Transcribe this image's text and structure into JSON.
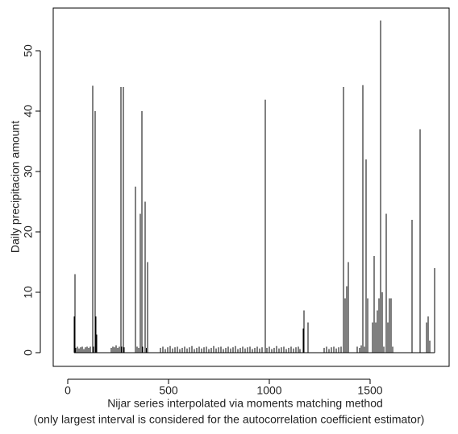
{
  "chart_data": {
    "type": "spike",
    "ylabel": "Daily precipitacion amount",
    "xlabel": [
      "Nijar series interpolated via moments matching method",
      "(only largest interval is considered for the autocorrelation coefficient estimator)"
    ],
    "xlim": [
      -72,
      1892
    ],
    "ylim": [
      -2.27,
      57.07
    ],
    "xticks": [
      0,
      500,
      1000,
      1500
    ],
    "yticks": [
      0,
      10,
      20,
      30,
      40,
      50
    ],
    "color": "#000000",
    "x": [
      32,
      36,
      40,
      48,
      56,
      64,
      72,
      80,
      88,
      96,
      104,
      112,
      124,
      128,
      136,
      140,
      144,
      216,
      224,
      232,
      240,
      248,
      256,
      264,
      268,
      276,
      280,
      336,
      344,
      352,
      360,
      368,
      372,
      384,
      390,
      396,
      460,
      472,
      484,
      496,
      508,
      520,
      532,
      544,
      556,
      568,
      580,
      592,
      604,
      616,
      628,
      640,
      652,
      664,
      676,
      688,
      700,
      712,
      724,
      736,
      748,
      760,
      772,
      784,
      796,
      808,
      820,
      832,
      844,
      856,
      868,
      880,
      892,
      904,
      916,
      928,
      940,
      952,
      964,
      980,
      988,
      1000,
      1012,
      1024,
      1036,
      1048,
      1060,
      1072,
      1084,
      1096,
      1108,
      1120,
      1132,
      1144,
      1152,
      1168,
      1172,
      1192,
      1272,
      1284,
      1296,
      1308,
      1320,
      1332,
      1344,
      1356,
      1368,
      1376,
      1384,
      1392,
      1436,
      1448,
      1456,
      1464,
      1472,
      1480,
      1488,
      1512,
      1520,
      1528,
      1536,
      1544,
      1552,
      1560,
      1568,
      1580,
      1588,
      1596,
      1604,
      1612,
      1708,
      1748,
      1780,
      1788,
      1796,
      1820
    ],
    "values": [
      6,
      13,
      0.8,
      1,
      0.7,
      0.9,
      1,
      0.6,
      0.9,
      1,
      0.8,
      1,
      44.2,
      1,
      40,
      6,
      3,
      0.8,
      1,
      0.9,
      1.2,
      0.8,
      1,
      44,
      1,
      44,
      0.9,
      27.5,
      1,
      0.8,
      23,
      40,
      1,
      25,
      0.8,
      15,
      0.8,
      1,
      0.6,
      0.9,
      1.1,
      0.7,
      0.9,
      1,
      0.6,
      0.8,
      1,
      0.7,
      0.9,
      1.1,
      0.6,
      0.8,
      1,
      0.7,
      0.9,
      1,
      0.6,
      0.8,
      1.1,
      0.7,
      0.9,
      1,
      0.6,
      0.8,
      1,
      0.7,
      0.9,
      1.1,
      0.6,
      0.8,
      1,
      0.7,
      0.9,
      1,
      0.6,
      0.8,
      1,
      0.7,
      0.9,
      41.9,
      0.8,
      1,
      0.6,
      0.8,
      1.1,
      0.7,
      0.9,
      1,
      0.6,
      0.8,
      1,
      0.7,
      0.9,
      1,
      0.6,
      4,
      7,
      5,
      0.8,
      1,
      0.6,
      0.9,
      1,
      0.7,
      0.9,
      1,
      44,
      9,
      11,
      15,
      1,
      0.8,
      1.2,
      44.3,
      1,
      32,
      9,
      5,
      16,
      5,
      7,
      9,
      55,
      10,
      1,
      23,
      5,
      9,
      9,
      1,
      22,
      37,
      5,
      6,
      2,
      14
    ]
  }
}
